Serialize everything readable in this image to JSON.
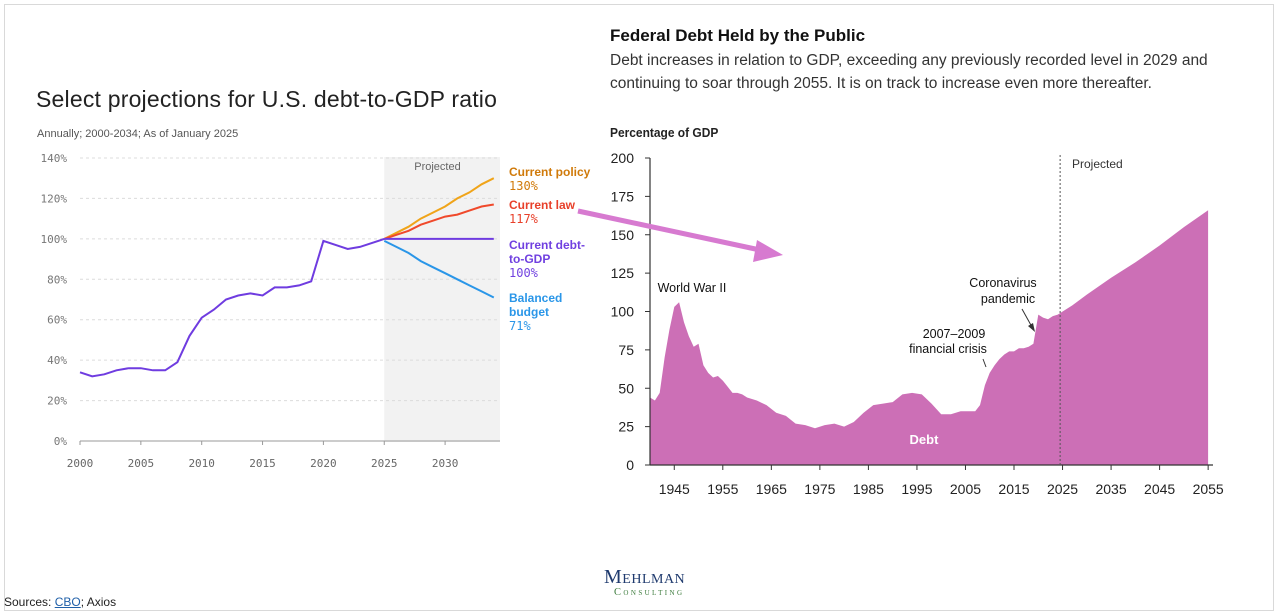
{
  "left_chart": {
    "title": "Select projections for U.S. debt-to-GDP ratio",
    "subtitle": "Annually; 2000-2034; As of January 2025",
    "projected_label": "Projected",
    "chart_data": {
      "type": "line",
      "x_ticks": [
        2000,
        2005,
        2010,
        2015,
        2020,
        2025,
        2030
      ],
      "y_ticks": [
        "0%",
        "20%",
        "40%",
        "60%",
        "80%",
        "100%",
        "120%",
        "140%"
      ],
      "ylim": [
        0,
        140
      ],
      "xlim": [
        1999,
        2034.8
      ],
      "projected_from": 2025,
      "history": {
        "x": [
          2000,
          2001,
          2002,
          2003,
          2004,
          2005,
          2006,
          2007,
          2008,
          2009,
          2010,
          2011,
          2012,
          2013,
          2014,
          2015,
          2016,
          2017,
          2018,
          2019,
          2020,
          2021,
          2022,
          2023,
          2024,
          2025
        ],
        "y": [
          34,
          32,
          33,
          35,
          36,
          36,
          35,
          35,
          39,
          52,
          61,
          65,
          70,
          72,
          73,
          72,
          76,
          76,
          77,
          79,
          99,
          97,
          95,
          96,
          98,
          100
        ],
        "color": "#6f3ce0"
      },
      "series": [
        {
          "name": "Current policy",
          "value_label": "130%",
          "color": "#f0a419",
          "label_color": "#d07a0a",
          "x": [
            2025,
            2026,
            2027,
            2028,
            2029,
            2030,
            2031,
            2032,
            2033,
            2034
          ],
          "y": [
            100,
            103,
            106,
            110,
            113,
            116,
            120,
            123,
            127,
            130
          ]
        },
        {
          "name": "Current law",
          "value_label": "117%",
          "color": "#f0492b",
          "label_color": "#e8402a",
          "x": [
            2025,
            2026,
            2027,
            2028,
            2029,
            2030,
            2031,
            2032,
            2033,
            2034
          ],
          "y": [
            100,
            102,
            104,
            107,
            109,
            111,
            112,
            114,
            116,
            117
          ]
        },
        {
          "name": "Current debt-to-GDP",
          "value_label": "100%",
          "color": "#6f3ce0",
          "label_color": "#7040e0",
          "x": [
            2025,
            2034
          ],
          "y": [
            100,
            100
          ]
        },
        {
          "name": "Balanced budget",
          "value_label": "71%",
          "color": "#2a96e8",
          "label_color": "#2a96e8",
          "x": [
            2025,
            2026,
            2027,
            2028,
            2029,
            2030,
            2031,
            2032,
            2033,
            2034
          ],
          "y": [
            99,
            96,
            93,
            89,
            86,
            83,
            80,
            77,
            74,
            71
          ]
        }
      ]
    }
  },
  "right_chart": {
    "title": "Federal Debt Held by the Public",
    "subtitle": "Debt increases in relation to GDP, exceeding any previously recorded level in 2029 and continuing to soar through 2055. It is on track to increase even more thereafter.",
    "ylabel": "Percentage of GDP",
    "projected_label": "Projected",
    "chart_data": {
      "type": "area",
      "color": "#cc6fb6",
      "x_ticks": [
        1945,
        1955,
        1965,
        1975,
        1985,
        1995,
        2005,
        2015,
        2025,
        2035,
        2045,
        2055
      ],
      "y_ticks": [
        0,
        25,
        50,
        75,
        100,
        125,
        150,
        175,
        200
      ],
      "ylim": [
        0,
        200
      ],
      "xlim": [
        1940,
        2056
      ],
      "projected_from": 2024.5,
      "series_label": "Debt",
      "x": [
        1940,
        1941,
        1942,
        1943,
        1944,
        1945,
        1946,
        1947,
        1948,
        1949,
        1950,
        1951,
        1952,
        1953,
        1954,
        1955,
        1956,
        1957,
        1958,
        1959,
        1960,
        1962,
        1964,
        1966,
        1968,
        1970,
        1972,
        1974,
        1976,
        1978,
        1980,
        1982,
        1984,
        1986,
        1988,
        1990,
        1992,
        1994,
        1996,
        1998,
        2000,
        2002,
        2004,
        2006,
        2007,
        2008,
        2009,
        2010,
        2011,
        2012,
        2013,
        2014,
        2015,
        2016,
        2017,
        2018,
        2019,
        2020,
        2021,
        2022,
        2023,
        2024,
        2027,
        2030,
        2035,
        2040,
        2045,
        2050,
        2055
      ],
      "y": [
        44,
        42,
        47,
        70,
        88,
        103,
        106,
        93,
        84,
        77,
        79,
        65,
        60,
        57,
        58,
        55,
        51,
        47,
        47,
        46,
        44,
        42,
        39,
        34,
        32,
        27,
        26,
        24,
        26,
        27,
        25,
        28,
        34,
        39,
        40,
        41,
        46,
        47,
        46,
        40,
        33,
        33,
        35,
        35,
        35,
        39,
        52,
        60,
        65,
        69,
        72,
        74,
        74,
        76,
        76,
        77,
        79,
        98,
        96,
        95,
        97,
        98,
        104,
        111,
        122,
        132,
        143,
        155,
        166
      ]
    },
    "annotations": {
      "ww2": "World War II",
      "covid_line1": "Coronavirus",
      "covid_line2": "pandemic",
      "crisis_line1": "2007–2009",
      "crisis_line2": "financial crisis"
    }
  },
  "arrow_color": "#d77ad0",
  "logo": {
    "line1": "Mehlman",
    "line2": "Consulting"
  },
  "sources": {
    "prefix": "Sources: ",
    "link": "CBO",
    "suffix": "; Axios"
  }
}
